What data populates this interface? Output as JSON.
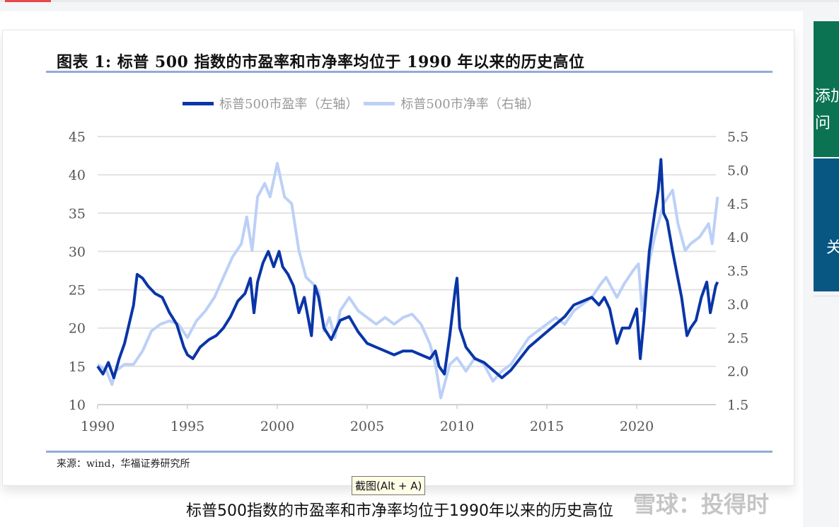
{
  "figure_title": "图表 1:  标普 500 指数的市盈率和市净率均位于 1990 年以来的历史高位",
  "source": "来源：wind，华福证券研究所",
  "tooltip": "截图(Alt + A)",
  "caption": "标普500指数的市盈率和市净率均位于1990年以来的历史高位",
  "watermark": "雪球：投得时",
  "side_panel": {
    "green_text_1": "添加",
    "green_text_2": "问",
    "blue_text": "关"
  },
  "chart_data": {
    "type": "line",
    "title": "",
    "legend_position": "top",
    "grid": true,
    "xlim": [
      1990,
      2024.6
    ],
    "x_ticks": [
      "1990",
      "1995",
      "2000",
      "2005",
      "2010",
      "2015",
      "2020"
    ],
    "y_left": {
      "lim": [
        10,
        45
      ],
      "ticks": [
        "10",
        "15",
        "20",
        "25",
        "30",
        "35",
        "40",
        "45"
      ]
    },
    "y_right": {
      "lim": [
        1.5,
        5.5
      ],
      "ticks": [
        "1.5",
        "2.0",
        "2.5",
        "3.0",
        "3.5",
        "4.0",
        "4.5",
        "5.0",
        "5.5"
      ]
    },
    "series": [
      {
        "name": "标普500市盈率（左轴）",
        "axis": "left",
        "color": "#0a35a8",
        "points": [
          [
            1990.0,
            15
          ],
          [
            1990.3,
            14
          ],
          [
            1990.6,
            15.5
          ],
          [
            1990.9,
            13.5
          ],
          [
            1991.2,
            16
          ],
          [
            1991.5,
            18
          ],
          [
            1991.8,
            21
          ],
          [
            1992.0,
            23
          ],
          [
            1992.2,
            27
          ],
          [
            1992.5,
            26.5
          ],
          [
            1992.8,
            25.5
          ],
          [
            1993.2,
            24.5
          ],
          [
            1993.6,
            24
          ],
          [
            1994.0,
            22
          ],
          [
            1994.4,
            20.5
          ],
          [
            1994.8,
            17.5
          ],
          [
            1995.0,
            16.5
          ],
          [
            1995.3,
            16
          ],
          [
            1995.7,
            17.5
          ],
          [
            1996.2,
            18.5
          ],
          [
            1996.6,
            19
          ],
          [
            1997.0,
            20
          ],
          [
            1997.4,
            21.5
          ],
          [
            1997.8,
            23.5
          ],
          [
            1998.2,
            24.5
          ],
          [
            1998.5,
            26.5
          ],
          [
            1998.7,
            22
          ],
          [
            1998.9,
            26
          ],
          [
            1999.2,
            28.5
          ],
          [
            1999.5,
            30
          ],
          [
            1999.8,
            28
          ],
          [
            2000.1,
            30
          ],
          [
            2000.3,
            28
          ],
          [
            2000.6,
            27
          ],
          [
            2000.9,
            25.5
          ],
          [
            2001.2,
            22
          ],
          [
            2001.5,
            24
          ],
          [
            2001.9,
            19
          ],
          [
            2002.1,
            25.5
          ],
          [
            2002.3,
            24
          ],
          [
            2002.6,
            20
          ],
          [
            2003.0,
            18.5
          ],
          [
            2003.5,
            21
          ],
          [
            2004.0,
            21.5
          ],
          [
            2004.5,
            19.5
          ],
          [
            2005.0,
            18
          ],
          [
            2005.5,
            17.5
          ],
          [
            2006.0,
            17
          ],
          [
            2006.5,
            16.5
          ],
          [
            2007.0,
            17
          ],
          [
            2007.5,
            17
          ],
          [
            2008.0,
            16.5
          ],
          [
            2008.5,
            16
          ],
          [
            2008.8,
            17
          ],
          [
            2009.0,
            15
          ],
          [
            2009.3,
            14
          ],
          [
            2009.6,
            19
          ],
          [
            2009.9,
            25
          ],
          [
            2010.0,
            26.5
          ],
          [
            2010.15,
            20
          ],
          [
            2010.5,
            17.5
          ],
          [
            2011.0,
            16
          ],
          [
            2011.5,
            15.5
          ],
          [
            2012.0,
            14.5
          ],
          [
            2012.5,
            13.5
          ],
          [
            2013.0,
            14.5
          ],
          [
            2013.5,
            16
          ],
          [
            2014.0,
            17.5
          ],
          [
            2014.5,
            18.5
          ],
          [
            2015.0,
            19.5
          ],
          [
            2015.5,
            20.5
          ],
          [
            2016.0,
            21.5
          ],
          [
            2016.5,
            23
          ],
          [
            2017.0,
            23.5
          ],
          [
            2017.5,
            24
          ],
          [
            2017.9,
            23
          ],
          [
            2018.2,
            24
          ],
          [
            2018.5,
            22.5
          ],
          [
            2018.9,
            18
          ],
          [
            2019.2,
            20
          ],
          [
            2019.6,
            20
          ],
          [
            2020.0,
            22.5
          ],
          [
            2020.2,
            16
          ],
          [
            2020.4,
            21
          ],
          [
            2020.7,
            30
          ],
          [
            2021.0,
            35
          ],
          [
            2021.2,
            38
          ],
          [
            2021.35,
            42
          ],
          [
            2021.5,
            35
          ],
          [
            2021.7,
            34
          ],
          [
            2022.0,
            30
          ],
          [
            2022.5,
            24
          ],
          [
            2022.8,
            19
          ],
          [
            2023.0,
            20
          ],
          [
            2023.3,
            21
          ],
          [
            2023.6,
            24
          ],
          [
            2023.9,
            26
          ],
          [
            2024.1,
            22
          ],
          [
            2024.4,
            25.5
          ],
          [
            2024.5,
            26
          ]
        ]
      },
      {
        "name": "标普500市净率（右轴）",
        "axis": "right",
        "color": "#bcd0f7",
        "points": [
          [
            1990.0,
            2.1
          ],
          [
            1990.5,
            2.0
          ],
          [
            1990.8,
            1.8
          ],
          [
            1991.0,
            2.0
          ],
          [
            1991.5,
            2.1
          ],
          [
            1992.0,
            2.1
          ],
          [
            1992.5,
            2.3
          ],
          [
            1993.0,
            2.6
          ],
          [
            1993.5,
            2.7
          ],
          [
            1994.0,
            2.75
          ],
          [
            1994.5,
            2.7
          ],
          [
            1995.0,
            2.5
          ],
          [
            1995.5,
            2.75
          ],
          [
            1996.0,
            2.9
          ],
          [
            1996.5,
            3.1
          ],
          [
            1997.0,
            3.4
          ],
          [
            1997.5,
            3.7
          ],
          [
            1998.0,
            3.9
          ],
          [
            1998.3,
            4.3
          ],
          [
            1998.6,
            3.8
          ],
          [
            1998.9,
            4.6
          ],
          [
            1999.3,
            4.8
          ],
          [
            1999.6,
            4.6
          ],
          [
            2000.0,
            5.1
          ],
          [
            2000.4,
            4.6
          ],
          [
            2000.8,
            4.5
          ],
          [
            2001.2,
            3.8
          ],
          [
            2001.6,
            3.4
          ],
          [
            2002.0,
            3.3
          ],
          [
            2002.3,
            3.2
          ],
          [
            2002.6,
            2.6
          ],
          [
            2002.9,
            2.8
          ],
          [
            2003.2,
            2.5
          ],
          [
            2003.5,
            2.9
          ],
          [
            2004.0,
            3.1
          ],
          [
            2004.5,
            2.9
          ],
          [
            2005.0,
            2.8
          ],
          [
            2005.5,
            2.7
          ],
          [
            2006.0,
            2.8
          ],
          [
            2006.5,
            2.7
          ],
          [
            2007.0,
            2.8
          ],
          [
            2007.5,
            2.85
          ],
          [
            2008.0,
            2.7
          ],
          [
            2008.5,
            2.4
          ],
          [
            2008.8,
            2.1
          ],
          [
            2009.1,
            1.6
          ],
          [
            2009.3,
            1.8
          ],
          [
            2009.6,
            2.1
          ],
          [
            2010.0,
            2.2
          ],
          [
            2010.5,
            2.0
          ],
          [
            2011.0,
            2.2
          ],
          [
            2011.5,
            2.1
          ],
          [
            2012.0,
            1.85
          ],
          [
            2012.5,
            2.0
          ],
          [
            2013.0,
            2.1
          ],
          [
            2013.5,
            2.3
          ],
          [
            2014.0,
            2.5
          ],
          [
            2014.5,
            2.6
          ],
          [
            2015.0,
            2.7
          ],
          [
            2015.5,
            2.8
          ],
          [
            2016.0,
            2.7
          ],
          [
            2016.5,
            2.9
          ],
          [
            2017.0,
            3.0
          ],
          [
            2017.5,
            3.1
          ],
          [
            2018.0,
            3.3
          ],
          [
            2018.3,
            3.4
          ],
          [
            2018.9,
            3.1
          ],
          [
            2019.3,
            3.3
          ],
          [
            2019.8,
            3.5
          ],
          [
            2020.1,
            3.6
          ],
          [
            2020.3,
            2.9
          ],
          [
            2020.6,
            3.5
          ],
          [
            2021.0,
            4.0
          ],
          [
            2021.5,
            4.5
          ],
          [
            2022.0,
            4.7
          ],
          [
            2022.3,
            4.2
          ],
          [
            2022.7,
            3.8
          ],
          [
            2023.0,
            3.9
          ],
          [
            2023.5,
            4.0
          ],
          [
            2024.0,
            4.2
          ],
          [
            2024.2,
            3.9
          ],
          [
            2024.5,
            4.6
          ]
        ]
      }
    ]
  }
}
